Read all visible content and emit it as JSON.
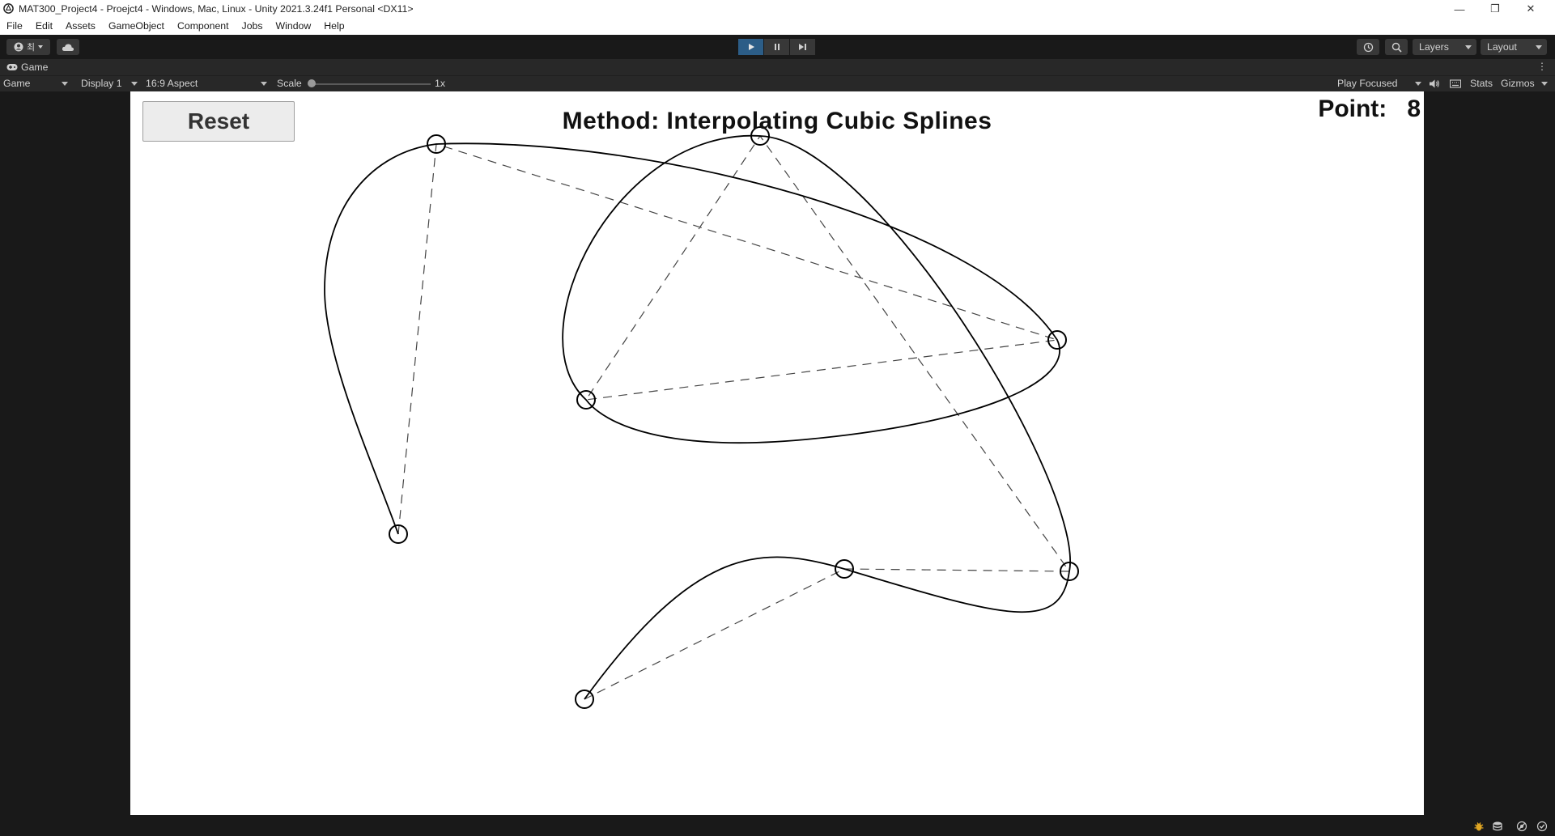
{
  "window": {
    "title": "MAT300_Project4 - Proejct4 - Windows, Mac, Linux - Unity 2021.3.24f1 Personal <DX11>",
    "controls": {
      "minimize": "—",
      "restore": "❐",
      "close": "✕"
    }
  },
  "menu": [
    "File",
    "Edit",
    "Assets",
    "GameObject",
    "Component",
    "Jobs",
    "Window",
    "Help"
  ],
  "toolbar": {
    "account_label": "최",
    "layers_label": "Layers",
    "layout_label": "Layout",
    "play_active": true
  },
  "game_tab": {
    "tab_label": "Game",
    "more_icon": "⋮"
  },
  "game_toolbar": {
    "view_dropdown": "Game",
    "display_dropdown": "Display 1",
    "aspect_dropdown": "16:9 Aspect",
    "scale_label": "Scale",
    "scale_value": "1x",
    "play_mode_dropdown": "Play Focused",
    "stats_label": "Stats",
    "gizmos_label": "Gizmos"
  },
  "game_view": {
    "reset_button": "Reset",
    "method_title": "Method: Interpolating Cubic Splines",
    "point_label": "Point:",
    "point_count": "8",
    "control_point_count": 8
  },
  "colors": {
    "editor_bg": "#191919",
    "panel_bg": "#282828",
    "play_active": "#2c5d87",
    "canvas_bg": "#ffffff",
    "curve": "#000000"
  }
}
